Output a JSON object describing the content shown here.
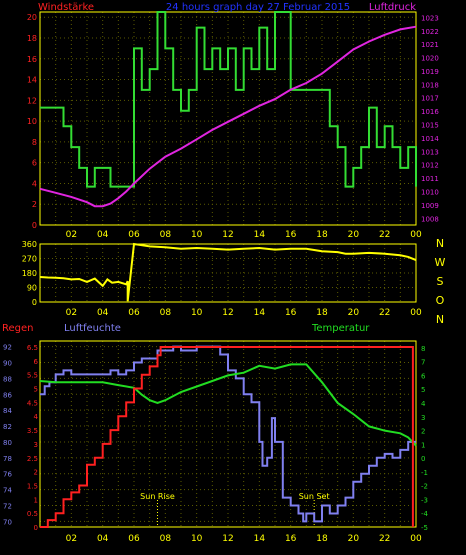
{
  "chart_data": [
    {
      "type": "line",
      "title": "24 hours graph day 27 Februar 2015",
      "left_axis_label": "Windstärke",
      "right_axis_label": "Luftdruck",
      "x_tick_labels": [
        "02",
        "04",
        "06",
        "08",
        "10",
        "12",
        "14",
        "16",
        "18",
        "20",
        "22",
        "00"
      ],
      "y_left_ticks": [
        0,
        2,
        4,
        6,
        8,
        10,
        12,
        14,
        16,
        18,
        20
      ],
      "y_left_range": [
        0,
        20.5
      ],
      "y_right_ticks": [
        1008,
        1009,
        1010,
        1011,
        1012,
        1013,
        1014,
        1015,
        1016,
        1017,
        1018,
        1019,
        1020,
        1021,
        1022,
        1023
      ],
      "y_right_range": [
        1007.5,
        1023.4
      ],
      "grid": true,
      "colors": {
        "wind": "#33dd33",
        "pressure": "#e025e0",
        "title": "#2233ff",
        "left_label": "#ff2222",
        "right_label": "#e025e0",
        "axis": "#ffff00",
        "grid": "#5a5a00",
        "left_ticks": "#ff2222",
        "right_ticks": "#e025e0"
      },
      "series": [
        {
          "name": "Windstärke",
          "step": true,
          "x": [
            0,
            1,
            1.5,
            2,
            2.5,
            3,
            3.5,
            4.5,
            5.5,
            6,
            6.5,
            7,
            7.5,
            8,
            8.5,
            9,
            9.5,
            10,
            10.5,
            11,
            11.5,
            12,
            12.5,
            13,
            13.5,
            14,
            14.5,
            15,
            15.5,
            16,
            18,
            18.5,
            19,
            19.5,
            20,
            20.5,
            21,
            21.5,
            22,
            22.5,
            23,
            23.5,
            24
          ],
          "y": [
            11.3,
            11.3,
            9.5,
            7.5,
            5.5,
            3.7,
            5.5,
            3.7,
            3.7,
            17,
            13,
            15,
            20.5,
            17,
            13,
            11,
            13,
            19,
            15,
            17,
            15,
            17,
            13,
            17,
            15,
            19,
            15,
            20.5,
            20.5,
            13,
            13,
            9.5,
            7.5,
            3.7,
            5.5,
            7.5,
            11.3,
            7.5,
            9.5,
            7.5,
            5.5,
            7.5,
            3.7
          ]
        },
        {
          "name": "Luftdruck",
          "axis": "right",
          "x": [
            0,
            1,
            2,
            3,
            3.5,
            4,
            4.5,
            5,
            5.5,
            6,
            7,
            8,
            9,
            10,
            11,
            12,
            13,
            14,
            15,
            16,
            17,
            18,
            19,
            20,
            21,
            22,
            23,
            24
          ],
          "y": [
            1010.2,
            1009.9,
            1009.6,
            1009.2,
            1008.9,
            1008.9,
            1009.1,
            1009.5,
            1010.0,
            1010.6,
            1011.7,
            1012.6,
            1013.2,
            1013.9,
            1014.6,
            1015.2,
            1015.8,
            1016.4,
            1016.9,
            1017.6,
            1018.1,
            1018.8,
            1019.7,
            1020.6,
            1021.2,
            1021.7,
            1022.1,
            1022.3
          ]
        }
      ]
    },
    {
      "type": "line",
      "title": "",
      "x_tick_labels": [
        "02",
        "04",
        "06",
        "08",
        "10",
        "12",
        "14",
        "16",
        "18",
        "20",
        "22",
        "00"
      ],
      "y_ticks": [
        0,
        90,
        180,
        270,
        360
      ],
      "y_range": [
        0,
        360
      ],
      "direction_labels": [
        "N",
        "W",
        "S",
        "O",
        "N"
      ],
      "grid": true,
      "colors": {
        "line": "#ffff00",
        "axis": "#ffff00",
        "grid": "#5a5a00",
        "ticks": "#ffff00",
        "direction_labels": "#ffff00"
      },
      "series": [
        {
          "name": "",
          "x": [
            0,
            0.5,
            1,
            1.5,
            2,
            2.5,
            3,
            3.5,
            4,
            4.3,
            4.6,
            5,
            5.5,
            5.6,
            5.6,
            6,
            7,
            8,
            9,
            10,
            11,
            12,
            13,
            14,
            15,
            16,
            17,
            18,
            19,
            19.5,
            20,
            21,
            22,
            23,
            23.5,
            24
          ],
          "y": [
            155,
            152,
            150,
            148,
            140,
            143,
            125,
            145,
            100,
            140,
            120,
            125,
            110,
            130,
            5,
            360,
            345,
            340,
            330,
            335,
            330,
            325,
            330,
            335,
            325,
            330,
            330,
            315,
            310,
            300,
            300,
            305,
            300,
            290,
            280,
            260
          ]
        }
      ]
    },
    {
      "type": "line",
      "left_axis_label": "Regen",
      "second_axis_label": "Luftfeuchte",
      "right_axis_label": "Temperatur",
      "annotations": [
        "Sun Rise",
        "Sun Set"
      ],
      "annotation_x": [
        7.5,
        17.5
      ],
      "x_tick_labels": [
        "02",
        "04",
        "06",
        "08",
        "10",
        "12",
        "14",
        "16",
        "18",
        "20",
        "22",
        "00"
      ],
      "y_rain_ticks": [
        "0",
        "0.5",
        "1",
        "1.5",
        "2",
        "2.5",
        "3",
        "3.5",
        "4",
        "4.5",
        "5",
        "5.5",
        "6",
        "6.5"
      ],
      "y_rain_range": [
        0,
        6.5
      ],
      "y_humidity_ticks": [
        70,
        72,
        74,
        76,
        78,
        80,
        82,
        84,
        86,
        88,
        90,
        92
      ],
      "y_humidity_range": [
        69.3,
        92.7
      ],
      "y_temp_ticks": [
        -5,
        -4,
        -3,
        -2,
        -1,
        0,
        1,
        2,
        3,
        4,
        5,
        6,
        7,
        8
      ],
      "y_temp_range": [
        -5,
        8.5
      ],
      "grid": true,
      "colors": {
        "rain": "#ff2020",
        "humidity": "#8080f0",
        "temperature": "#22dd22",
        "axis": "#ffff00",
        "grid": "#5a5a00",
        "rain_ticks": "#ff2222",
        "humidity_ticks": "#8080f0",
        "temp_ticks": "#22dd22",
        "sun": "#ffff00"
      },
      "series": [
        {
          "name": "Regen",
          "step": true,
          "axis": "rain",
          "x": [
            0,
            0.5,
            1,
            1.5,
            2,
            2.5,
            3,
            3.5,
            4,
            4.5,
            5,
            5.5,
            6,
            6.5,
            7,
            7.5,
            7.7,
            23.8,
            23.8
          ],
          "y": [
            0,
            0.25,
            0.5,
            1,
            1.25,
            1.5,
            2.25,
            2.5,
            3,
            3.5,
            4,
            4.5,
            5,
            5.5,
            5.8,
            6.2,
            6.5,
            6.5,
            0
          ]
        },
        {
          "name": "Luftfeuchte",
          "step": true,
          "axis": "humidity",
          "x": [
            0,
            0.3,
            0.6,
            1,
            1.5,
            2,
            3,
            4,
            4.5,
            5,
            5.5,
            6,
            6.5,
            7,
            7.5,
            8,
            8.5,
            9,
            10,
            11,
            11.5,
            12,
            12.5,
            13,
            13.5,
            14,
            14.2,
            14.5,
            14.8,
            15,
            15.5,
            16,
            16.5,
            16.8,
            17,
            17.5,
            18,
            18.5,
            19,
            19.5,
            20,
            20.5,
            21,
            21.5,
            22,
            22.5,
            23,
            23.5,
            24
          ],
          "y": [
            86,
            87,
            87.5,
            88.5,
            89,
            88.5,
            88.5,
            88.5,
            89,
            88.5,
            89,
            90,
            90.5,
            90.5,
            91.5,
            91.5,
            92,
            91.5,
            92,
            92,
            91,
            89,
            88,
            86,
            85,
            80,
            77,
            78,
            83,
            80,
            73,
            72,
            71,
            70,
            71,
            70,
            72,
            71,
            72,
            73,
            75,
            76,
            77,
            78,
            78.5,
            78,
            79,
            80,
            80
          ]
        },
        {
          "name": "Temperatur",
          "axis": "temp",
          "x": [
            0,
            1,
            2,
            3,
            4,
            5,
            6,
            6.5,
            7,
            7.5,
            8,
            9,
            10,
            11,
            12,
            13,
            14,
            15,
            16,
            17,
            18,
            19,
            20,
            21,
            22,
            23,
            23.5,
            24
          ],
          "y": [
            5.6,
            5.5,
            5.5,
            5.5,
            5.5,
            5.3,
            5.1,
            4.6,
            4.2,
            4.0,
            4.2,
            4.8,
            5.2,
            5.6,
            6.0,
            6.2,
            6.7,
            6.5,
            6.8,
            6.8,
            5.5,
            4.0,
            3.2,
            2.3,
            2.0,
            1.8,
            1.5,
            0.9
          ]
        }
      ]
    }
  ]
}
